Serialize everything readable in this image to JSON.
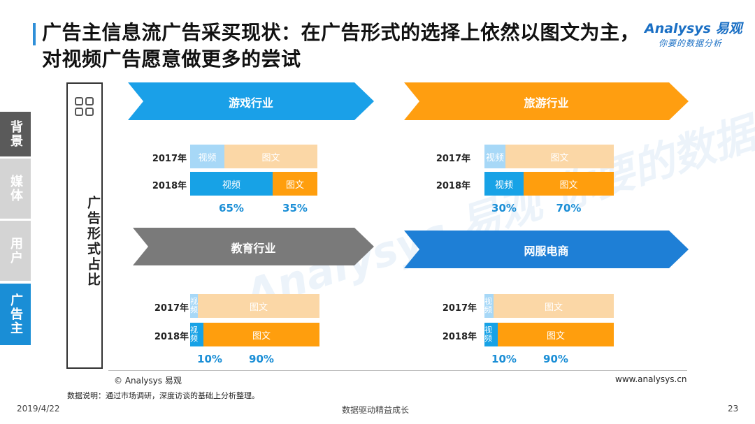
{
  "title": "广告主信息流广告采买现状：在广告形式的选择上依然以图文为主，对视频广告愿意做更多的尝试",
  "logo": {
    "main": "Analysys 易观",
    "sub": "你要的数据分析"
  },
  "watermark": "Analysys 易观 你要的数据分析",
  "side_tabs": [
    "背景",
    "媒体",
    "用户",
    "广告主"
  ],
  "left_label": "广告形式占比",
  "colors": {
    "video_2017": "#a7d8f7",
    "text_2017": "#fbd7a6",
    "video_2018": "#17a2e6",
    "text_2018": "#ff9e0d",
    "games": "#1aa0e8",
    "travel": "#ff9e10",
    "education": "#7a7a7a",
    "online_service": "#1e7fd6",
    "active_tab": "#1a8ed6",
    "inactive_tab": "#d4d4d4",
    "dark_tab": "#5a5a5a"
  },
  "chart_data": [
    {
      "type": "bar",
      "stacked": true,
      "orientation": "horizontal",
      "title": "游戏行业",
      "categories": [
        "2017年",
        "2018年"
      ],
      "series": [
        {
          "name": "视频",
          "values": [
            27,
            65
          ]
        },
        {
          "name": "图文",
          "values": [
            73,
            35
          ]
        }
      ],
      "labels_2018": [
        "65%",
        "35%"
      ]
    },
    {
      "type": "bar",
      "stacked": true,
      "orientation": "horizontal",
      "title": "旅游行业",
      "categories": [
        "2017年",
        "2018年"
      ],
      "series": [
        {
          "name": "视频",
          "values": [
            16,
            30
          ]
        },
        {
          "name": "图文",
          "values": [
            84,
            70
          ]
        }
      ],
      "labels_2018": [
        "30%",
        "70%"
      ]
    },
    {
      "type": "bar",
      "stacked": true,
      "orientation": "horizontal",
      "title": "教育行业",
      "categories": [
        "2017年",
        "2018年"
      ],
      "series": [
        {
          "name": "视频",
          "values": [
            6,
            10
          ]
        },
        {
          "name": "图文",
          "values": [
            94,
            90
          ]
        }
      ],
      "labels_2018": [
        "10%",
        "90%"
      ]
    },
    {
      "type": "bar",
      "stacked": true,
      "orientation": "horizontal",
      "title": "网服电商",
      "categories": [
        "2017年",
        "2018年"
      ],
      "series": [
        {
          "name": "视频",
          "values": [
            7,
            10
          ]
        },
        {
          "name": "图文",
          "values": [
            93,
            90
          ]
        }
      ],
      "labels_2018": [
        "10%",
        "90%"
      ]
    }
  ],
  "footer": {
    "copyright": "© Analysys 易观",
    "site": "www.analysys.cn",
    "note": "数据说明：通过市场调研，深度访谈的基础上分析整理。",
    "date": "2019/4/22",
    "slogan": "数据驱动精益成长",
    "page": "23"
  }
}
